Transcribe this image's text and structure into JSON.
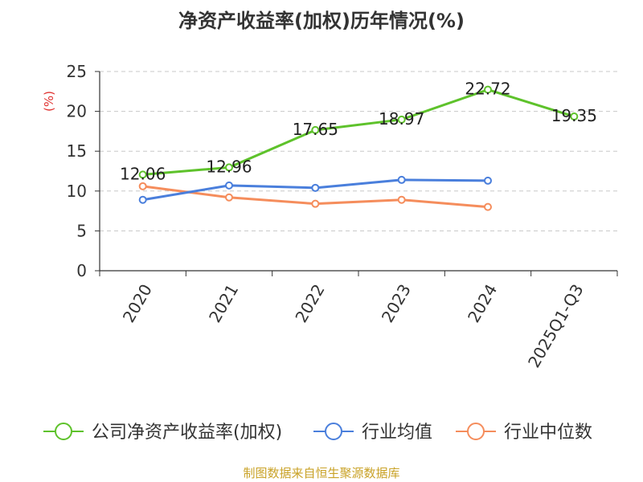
{
  "chart_data": {
    "type": "line",
    "title": "净资产收益率(加权)历年情况(%)",
    "ylabel": "(%)",
    "xlabel": "",
    "categories": [
      "2020",
      "2021",
      "2022",
      "2023",
      "2024",
      "2025Q1-Q3"
    ],
    "ylim": [
      0,
      25
    ],
    "yticks": [
      "0",
      "5",
      "10",
      "15",
      "20",
      "25"
    ],
    "grid": true,
    "legend_position": "bottom",
    "series": [
      {
        "name": "公司净资产收益率(加权)",
        "color": "#5ec22b",
        "values": [
          12.06,
          12.96,
          17.65,
          18.97,
          22.72,
          19.35
        ],
        "labels": [
          "12.06",
          "12.96",
          "17.65",
          "18.97",
          "22.72",
          "19.35"
        ]
      },
      {
        "name": "行业均值",
        "color": "#4a7fdc",
        "values": [
          8.9,
          10.7,
          10.4,
          11.4,
          11.3,
          null
        ]
      },
      {
        "name": "行业中位数",
        "color": "#f58d5c",
        "values": [
          10.6,
          9.2,
          8.4,
          8.9,
          8.0,
          null
        ]
      }
    ]
  },
  "footer": "制图数据来自恒生聚源数据库"
}
